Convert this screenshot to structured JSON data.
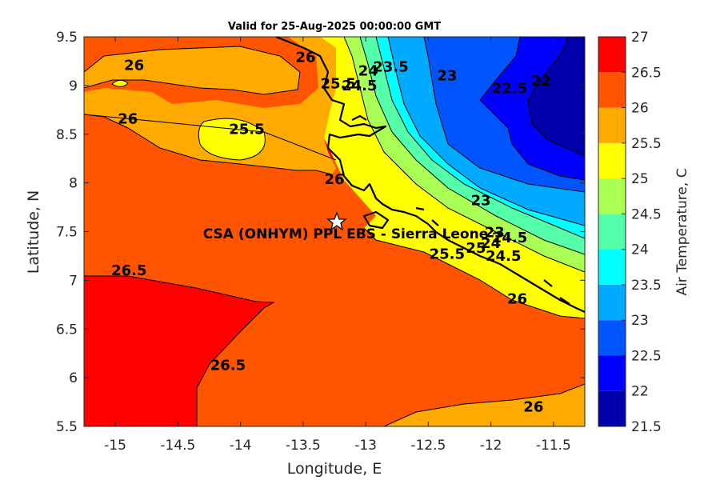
{
  "title": "Valid for 25-Aug-2025 00:00:00 GMT",
  "xlabel": "Longitude, E",
  "ylabel": "Latitude, N",
  "colorbar_label": "Air Temperature, C",
  "site_label": "CSA (ONHYM) PPL EBS - Sierra Leone",
  "site_marker": "star-icon",
  "site": {
    "lon": -13.24,
    "lat": 7.6
  },
  "xlim": [
    -15.25,
    -11.25
  ],
  "ylim": [
    5.5,
    9.5
  ],
  "x_ticks": [
    -15,
    -14.5,
    -14,
    -13.5,
    -13,
    -12.5,
    -12,
    -11.5
  ],
  "x_tick_labels": [
    "-15",
    "-14.5",
    "-14",
    "-13.5",
    "-13",
    "-12.5",
    "-12",
    "-11.5"
  ],
  "y_ticks": [
    5.5,
    6,
    6.5,
    7,
    7.5,
    8,
    8.5,
    9,
    9.5
  ],
  "y_tick_labels": [
    "5.5",
    "6",
    "6.5",
    "7",
    "7.5",
    "8",
    "8.5",
    "9",
    "9.5"
  ],
  "colorbar": {
    "levels": [
      21.5,
      22,
      22.5,
      23,
      23.5,
      24,
      24.5,
      25,
      25.5,
      26,
      26.5,
      27
    ],
    "tick_labels": [
      "21.5",
      "22",
      "22.5",
      "23",
      "23.5",
      "24",
      "24.5",
      "25",
      "25.5",
      "26",
      "26.5",
      "27"
    ],
    "colors": [
      "#0000aa",
      "#0000ff",
      "#0055ff",
      "#00aaff",
      "#00ffff",
      "#55ffaa",
      "#aaff55",
      "#ffff00",
      "#ffaa00",
      "#ff5500",
      "#ff0000"
    ]
  },
  "chart_data": {
    "type": "contour",
    "variable": "Air Temperature, C",
    "x_range": [
      -15.25,
      -11.25
    ],
    "y_range": [
      5.5,
      9.5
    ],
    "contour_levels": [
      21.5,
      22,
      22.5,
      23,
      23.5,
      24,
      24.5,
      25,
      25.5,
      26,
      26.5,
      27
    ],
    "contour_labels": [
      {
        "text": "26",
        "lon": -14.85,
        "lat": 9.21
      },
      {
        "text": "26",
        "lon": -13.48,
        "lat": 9.29
      },
      {
        "text": "26",
        "lon": -14.9,
        "lat": 8.66
      },
      {
        "text": "25.5",
        "lon": -13.95,
        "lat": 8.55
      },
      {
        "text": "26",
        "lon": -13.25,
        "lat": 8.04
      },
      {
        "text": "26.5",
        "lon": -14.89,
        "lat": 7.1
      },
      {
        "text": "26.5",
        "lon": -14.1,
        "lat": 6.13
      },
      {
        "text": "26",
        "lon": -11.79,
        "lat": 6.81
      },
      {
        "text": "26",
        "lon": -11.66,
        "lat": 5.7
      },
      {
        "text": "25.5",
        "lon": -13.22,
        "lat": 9.02
      },
      {
        "text": "24.5",
        "lon": -13.05,
        "lat": 9.0
      },
      {
        "text": "24",
        "lon": -12.98,
        "lat": 9.15
      },
      {
        "text": "23.5",
        "lon": -12.8,
        "lat": 9.19
      },
      {
        "text": "23",
        "lon": -12.35,
        "lat": 9.1
      },
      {
        "text": "22.5",
        "lon": -11.85,
        "lat": 8.97
      },
      {
        "text": "22",
        "lon": -11.6,
        "lat": 9.05
      },
      {
        "text": "23",
        "lon": -12.08,
        "lat": 7.82
      },
      {
        "text": "23",
        "lon": -11.97,
        "lat": 7.49
      },
      {
        "text": "24.5",
        "lon": -11.85,
        "lat": 7.44
      },
      {
        "text": "25.5",
        "lon": -12.35,
        "lat": 7.27
      },
      {
        "text": "25",
        "lon": -12.12,
        "lat": 7.33
      },
      {
        "text": "24",
        "lon": -12.0,
        "lat": 7.38
      },
      {
        "text": "24.5",
        "lon": -11.9,
        "lat": 7.25
      }
    ]
  }
}
